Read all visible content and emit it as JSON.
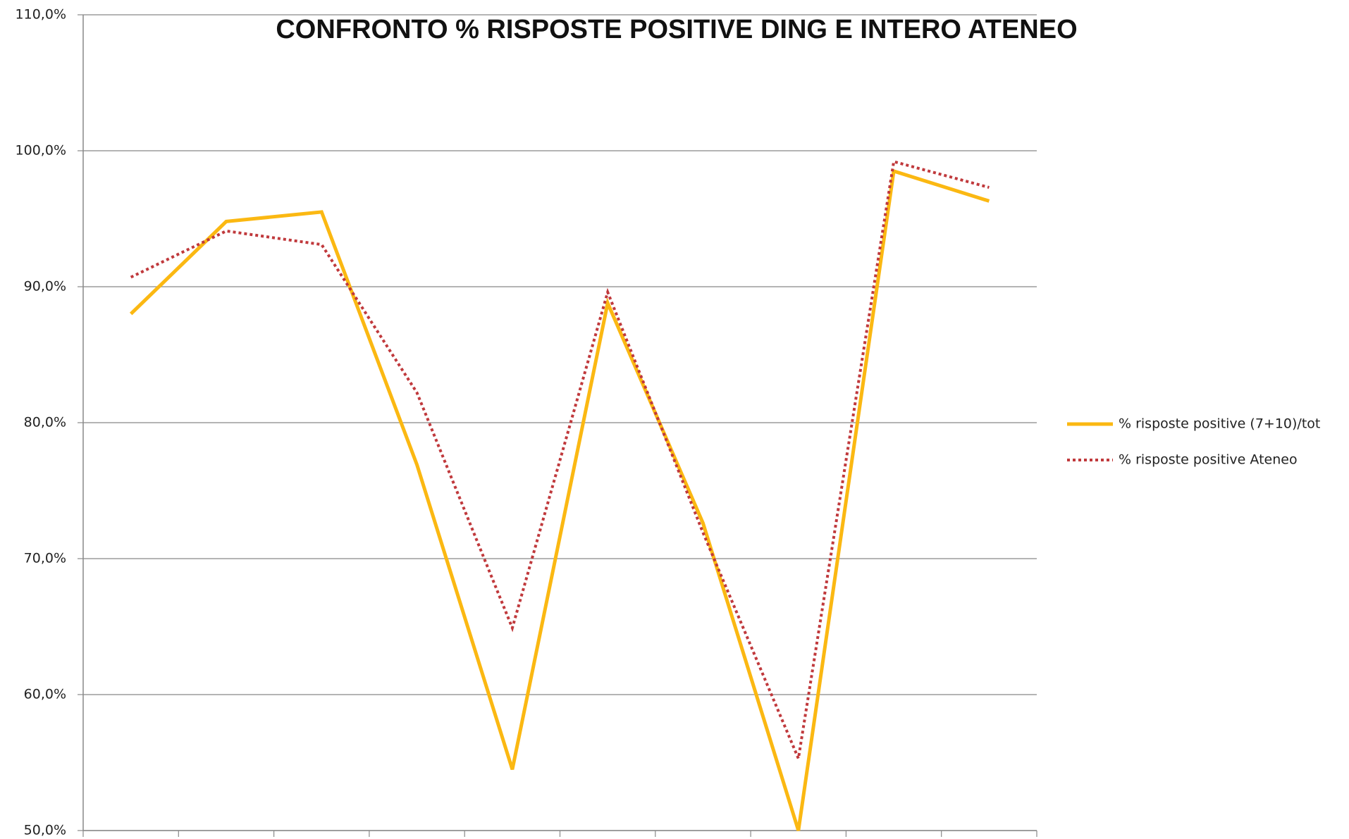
{
  "chart_data": {
    "type": "line",
    "title": "CONFRONTO % RISPOSTE POSITIVE DING E INTERO ATENEO",
    "categories": [
      null,
      null,
      null,
      null,
      null,
      null,
      null,
      null,
      null,
      null
    ],
    "series": [
      {
        "name": "% risposte positive (7+10)/tot",
        "color": "#fbb812",
        "style": "solid",
        "values": [
          88.0,
          94.8,
          95.5,
          76.9,
          54.5,
          88.8,
          72.6,
          50.0,
          98.5,
          96.3
        ]
      },
      {
        "name": "% risposte positive Ateneo",
        "color": "#c0393c",
        "style": "dotted",
        "values": [
          90.7,
          94.1,
          93.1,
          82.2,
          64.9,
          89.6,
          71.9,
          55.3,
          99.2,
          97.3
        ]
      }
    ],
    "ylim": [
      50,
      110
    ],
    "yticks": [
      {
        "value": 50,
        "label": "50,0%"
      },
      {
        "value": 60,
        "label": "60,0%"
      },
      {
        "value": 70,
        "label": "70,0%"
      },
      {
        "value": 80,
        "label": "80,0%"
      },
      {
        "value": 90,
        "label": "90,0%"
      },
      {
        "value": 100,
        "label": "100,0%"
      },
      {
        "value": 110,
        "label": "110,0%"
      }
    ],
    "grid": true,
    "legend": "right"
  }
}
